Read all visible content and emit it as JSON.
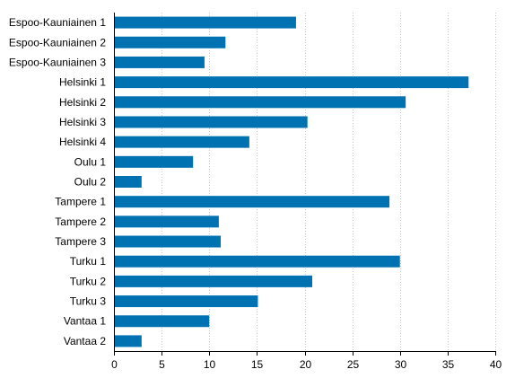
{
  "chart_data": {
    "type": "bar",
    "orientation": "horizontal",
    "categories": [
      "Espoo-Kauniainen 1",
      "Espoo-Kauniainen 2",
      "Espoo-Kauniainen 3",
      "Helsinki 1",
      "Helsinki 2",
      "Helsinki 3",
      "Helsinki 4",
      "Oulu 1",
      "Oulu 2",
      "Tampere 1",
      "Tampere 2",
      "Tampere 3",
      "Turku 1",
      "Turku 2",
      "Turku 3",
      "Vantaa 1",
      "Vantaa 2"
    ],
    "values": [
      19.1,
      11.7,
      9.5,
      37.2,
      30.6,
      20.3,
      14.2,
      8.3,
      2.9,
      28.9,
      11.0,
      11.2,
      30.0,
      20.8,
      15.1,
      10.0,
      2.9
    ],
    "xlim": [
      0,
      40
    ],
    "xticks": [
      0,
      5,
      10,
      15,
      20,
      25,
      30,
      35,
      40
    ],
    "grid": true,
    "bar_color": "#0072b2",
    "title": "",
    "xlabel": "",
    "ylabel": ""
  }
}
